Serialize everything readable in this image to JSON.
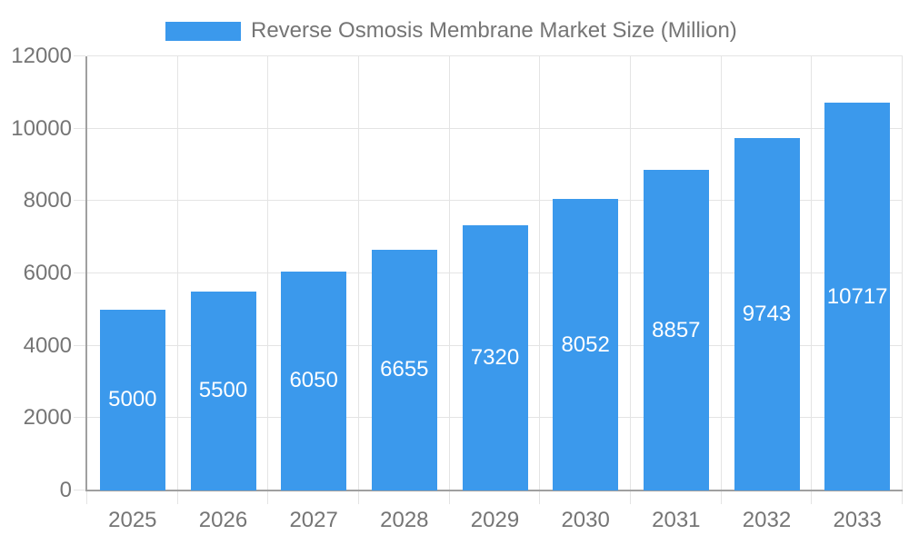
{
  "legend": {
    "swatch_color": "#3b99ec"
  },
  "chart_data": {
    "type": "bar",
    "title": "Reverse Osmosis Membrane Market Size (Million)",
    "categories": [
      "2025",
      "2026",
      "2027",
      "2028",
      "2029",
      "2030",
      "2031",
      "2032",
      "2033"
    ],
    "values": [
      5000,
      5500,
      6050,
      6655,
      7320,
      8052,
      8857,
      9743,
      10717
    ],
    "xlabel": "",
    "ylabel": "",
    "ylim": [
      0,
      12000
    ],
    "yticks": [
      0,
      2000,
      4000,
      6000,
      8000,
      10000,
      12000
    ],
    "grid": true,
    "legend_position": "top",
    "bar_color": "#3b99ec",
    "value_label_color": "#ffffff",
    "axis_text_color": "#757575",
    "grid_color": "#e4e4e4",
    "axis_line_color": "#a0a0a0"
  }
}
